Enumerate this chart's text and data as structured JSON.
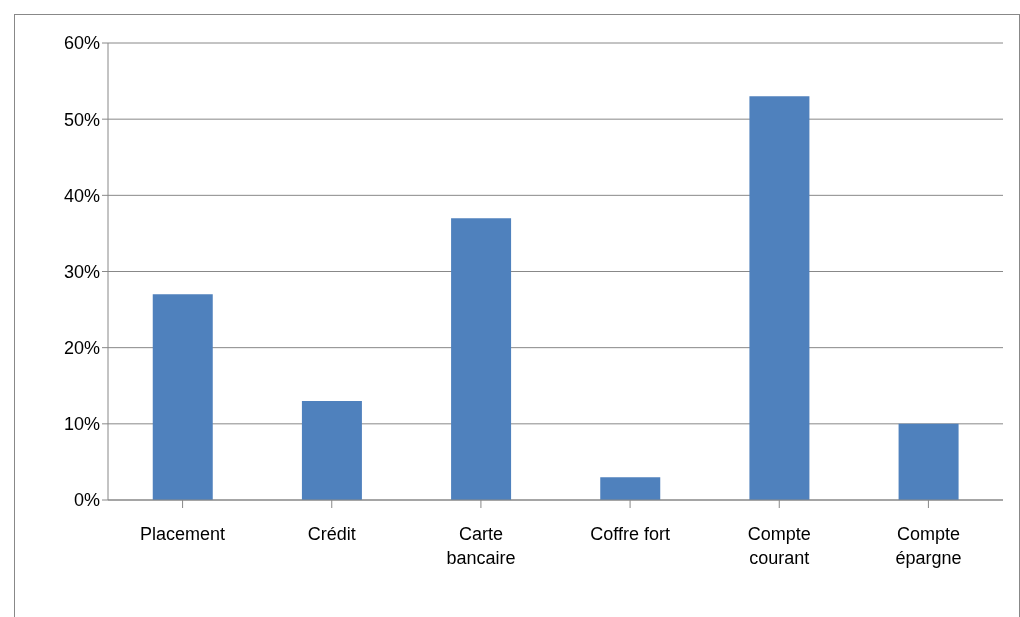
{
  "chart_data": {
    "type": "bar",
    "categories": [
      "Placement",
      "Crédit",
      "Carte bancaire",
      "Coffre fort",
      "Compte courant",
      "Compte épargne"
    ],
    "values": [
      27,
      13,
      37,
      3,
      53,
      10
    ],
    "color": "#4f81bd",
    "ylim": [
      0,
      60
    ],
    "yticks": [
      {
        "value": 0,
        "label": "0%"
      },
      {
        "value": 10,
        "label": "10%"
      },
      {
        "value": 20,
        "label": "20%"
      },
      {
        "value": 30,
        "label": "30%"
      },
      {
        "value": 40,
        "label": "40%"
      },
      {
        "value": 50,
        "label": "50%"
      },
      {
        "value": 60,
        "label": "60%"
      }
    ],
    "grid": "y"
  }
}
